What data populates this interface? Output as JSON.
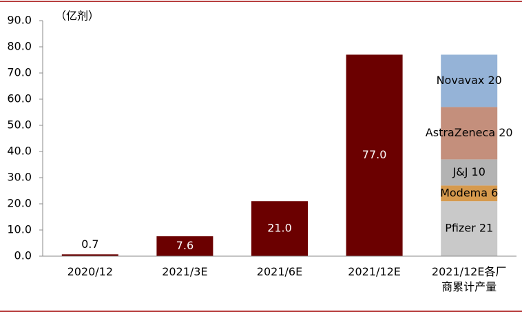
{
  "chart_data": {
    "type": "bar",
    "y_label": "（亿剂）",
    "categories": [
      "2020/12",
      "2021/3E",
      "2021/6E",
      "2021/12E",
      "2021/12E各厂商累计产量"
    ],
    "series": [
      {
        "color": "#6b0000",
        "values": [
          0.7,
          7.6,
          21.0,
          77.0,
          null
        ],
        "value_labels": [
          "0.7",
          "7.6",
          "21.0",
          "77.0",
          null
        ]
      },
      {
        "color": "#c9c9c9",
        "values": [
          null,
          null,
          null,
          null,
          21
        ],
        "value_labels": [
          null,
          null,
          null,
          null,
          "Pfizer 21"
        ]
      },
      {
        "color": "#d69a4e",
        "values": [
          null,
          null,
          null,
          null,
          6
        ],
        "value_labels": [
          null,
          null,
          null,
          null,
          "Modema 6"
        ]
      },
      {
        "color": "#b3b3b3",
        "values": [
          null,
          null,
          null,
          null,
          10
        ],
        "value_labels": [
          null,
          null,
          null,
          null,
          "J&J 10"
        ]
      },
      {
        "color": "#c48f7c",
        "values": [
          null,
          null,
          null,
          null,
          20
        ],
        "value_labels": [
          null,
          null,
          null,
          null,
          "AstraZeneca 20"
        ]
      },
      {
        "color": "#95b3d7",
        "values": [
          null,
          null,
          null,
          null,
          20
        ],
        "value_labels": [
          null,
          null,
          null,
          null,
          "Novavax 20"
        ]
      }
    ],
    "ylim": [
      0,
      90
    ],
    "yticks": [
      {
        "value": 0,
        "label": "0.0"
      },
      {
        "value": 10,
        "label": "10.0"
      },
      {
        "value": 20,
        "label": "20.0"
      },
      {
        "value": 30,
        "label": "30.0"
      },
      {
        "value": 40,
        "label": "40.0"
      },
      {
        "value": 50,
        "label": "50.0"
      },
      {
        "value": 60,
        "label": "60.0"
      },
      {
        "value": 70,
        "label": "70.0"
      },
      {
        "value": 80,
        "label": "80.0"
      },
      {
        "value": 90,
        "label": "90.0"
      }
    ],
    "grid": false
  }
}
